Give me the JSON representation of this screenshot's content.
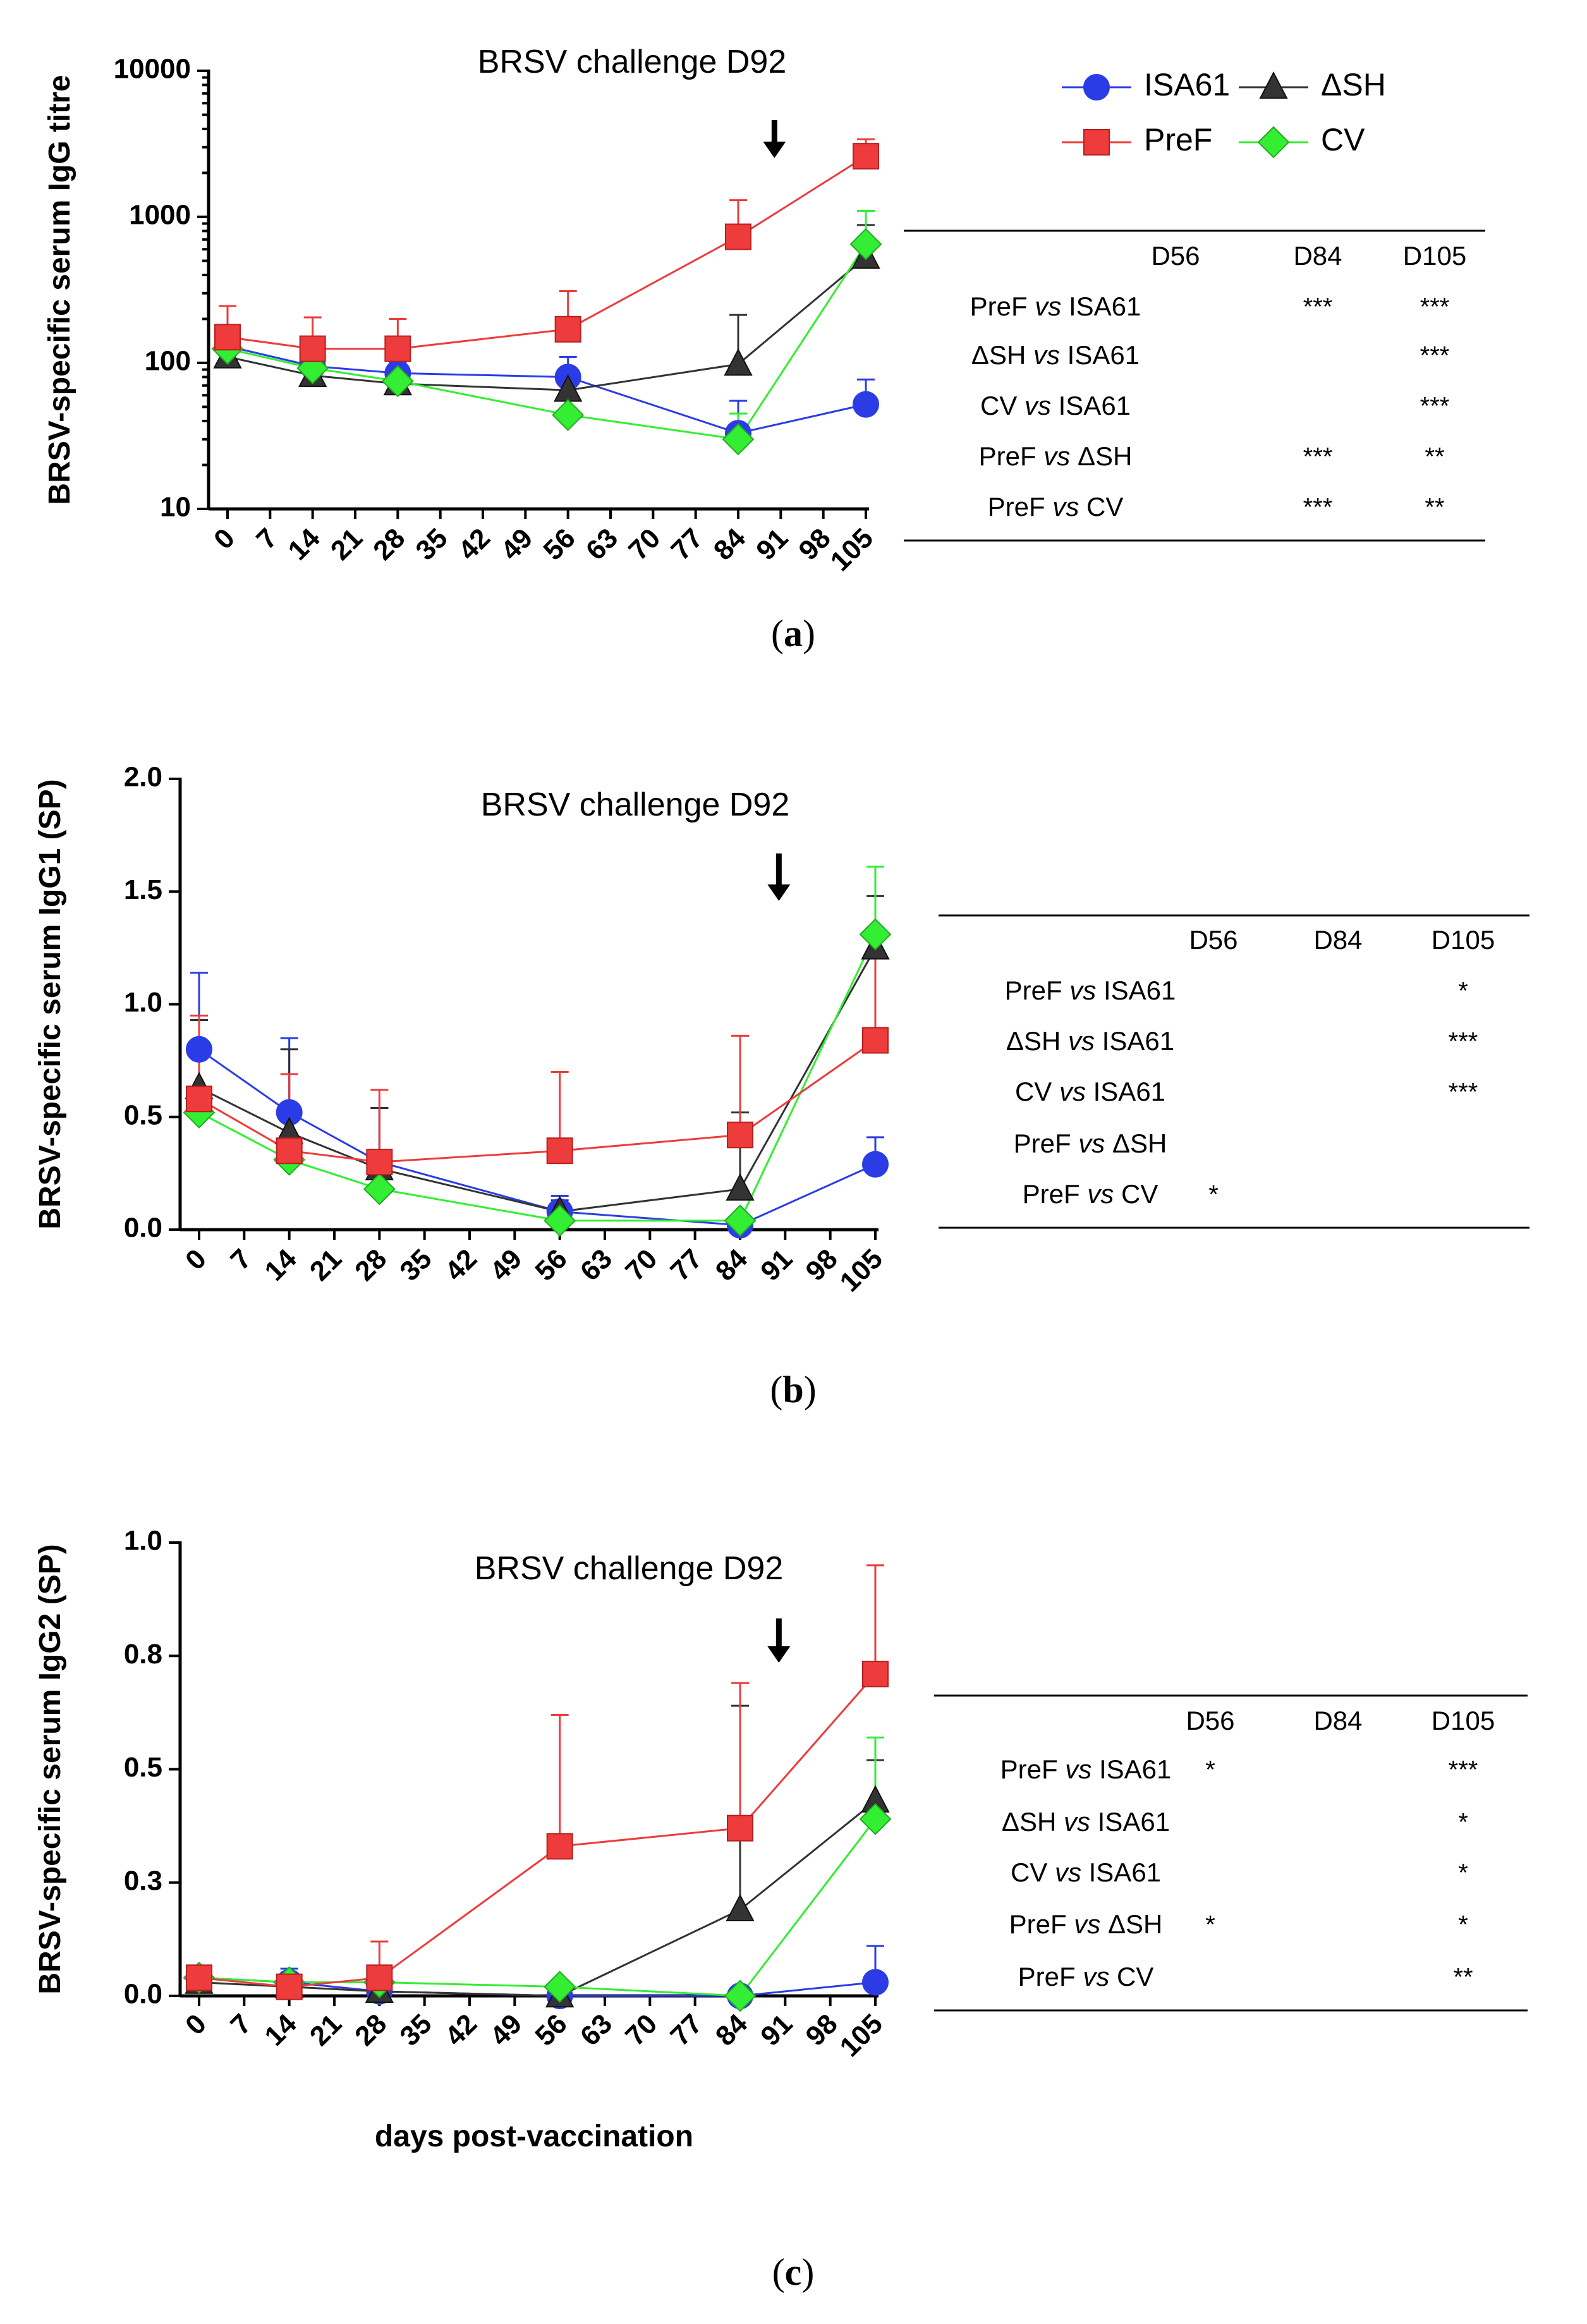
{
  "legend": {
    "items": [
      {
        "name": "ISA61",
        "color": "#2b3ce6",
        "marker": "circle"
      },
      {
        "name": "ΔSH",
        "color": "#333333",
        "marker": "triangle"
      },
      {
        "name": "PreF",
        "color": "#ee3b3b",
        "marker": "square"
      },
      {
        "name": "CV",
        "color": "#33ee33",
        "marker": "diamond"
      }
    ]
  },
  "xlabel": "days post-vaccination",
  "chart_data": [
    {
      "type": "line",
      "panel": "a",
      "scale": "log",
      "ylabel": "BRSV-specific serum IgG titre",
      "ylim": [
        10,
        10000
      ],
      "yticks": [
        10,
        100,
        1000,
        10000
      ],
      "ytick_labels": [
        "10",
        "100",
        "1000",
        "10000"
      ],
      "xticks": [
        0,
        7,
        14,
        21,
        28,
        35,
        42,
        49,
        56,
        63,
        70,
        77,
        84,
        91,
        98,
        105
      ],
      "xlim": [
        0,
        105
      ],
      "annotation": "BRSV challenge D92",
      "arrow_x": 91,
      "series": [
        {
          "name": "ISA61",
          "x": [
            0,
            14,
            28,
            56,
            84,
            105
          ],
          "values": [
            130,
            95,
            85,
            80,
            33,
            52
          ],
          "err": [
            25,
            15,
            15,
            30,
            22,
            25
          ]
        },
        {
          "name": "ΔSH",
          "x": [
            0,
            14,
            28,
            56,
            84,
            105
          ],
          "values": [
            110,
            82,
            72,
            65,
            98,
            530
          ],
          "err": [
            10,
            10,
            8,
            10,
            115,
            350
          ]
        },
        {
          "name": "PreF",
          "x": [
            0,
            14,
            28,
            56,
            84,
            105
          ],
          "values": [
            150,
            125,
            125,
            170,
            730,
            2600
          ],
          "err": [
            95,
            80,
            75,
            140,
            570,
            800
          ]
        },
        {
          "name": "CV",
          "x": [
            0,
            14,
            28,
            56,
            84,
            105
          ],
          "values": [
            125,
            92,
            75,
            44,
            30,
            650
          ],
          "err": [
            10,
            10,
            8,
            5,
            15,
            450
          ]
        }
      ],
      "stats": {
        "columns": [
          "D56",
          "D84",
          "D105"
        ],
        "rows": [
          {
            "label_a": "PreF",
            "vs": "vs",
            "label_b": "ISA61",
            "sig": [
              "",
              "***",
              "***"
            ]
          },
          {
            "label_a": "ΔSH",
            "vs": "vs",
            "label_b": "ISA61",
            "sig": [
              "",
              "",
              "***"
            ]
          },
          {
            "label_a": "CV",
            "vs": "vs",
            "label_b": "ISA61",
            "sig": [
              "",
              "",
              "***"
            ]
          },
          {
            "label_a": "PreF",
            "vs": "vs",
            "label_b": "ΔSH",
            "sig": [
              "",
              "***",
              "**"
            ]
          },
          {
            "label_a": "PreF",
            "vs": "vs",
            "label_b": "CV",
            "sig": [
              "",
              "***",
              "**"
            ]
          }
        ]
      },
      "panel_label": "a"
    },
    {
      "type": "line",
      "panel": "b",
      "scale": "linear",
      "ylabel": "BRSV-specific serum IgG1 (SP)",
      "ylim": [
        0,
        2.0
      ],
      "yticks": [
        0,
        0.5,
        1.0,
        1.5,
        2.0
      ],
      "ytick_labels": [
        "0.0",
        "0.5",
        "1.0",
        "1.5",
        "2.0"
      ],
      "xticks": [
        0,
        7,
        14,
        21,
        28,
        35,
        42,
        49,
        56,
        63,
        70,
        77,
        84,
        91,
        98,
        105
      ],
      "xlim": [
        0,
        105
      ],
      "annotation": "BRSV challenge D92",
      "arrow_x": 91,
      "series": [
        {
          "name": "ISA61",
          "x": [
            0,
            14,
            28,
            56,
            84,
            105
          ],
          "values": [
            0.8,
            0.52,
            0.3,
            0.08,
            0.02,
            0.29
          ],
          "err": [
            0.34,
            0.33,
            0.24,
            0.07,
            0.02,
            0.12
          ]
        },
        {
          "name": "ΔSH",
          "x": [
            0,
            14,
            28,
            56,
            84,
            105
          ],
          "values": [
            0.63,
            0.43,
            0.27,
            0.08,
            0.18,
            1.25
          ],
          "err": [
            0.3,
            0.37,
            0.27,
            0.05,
            0.34,
            0.23
          ]
        },
        {
          "name": "PreF",
          "x": [
            0,
            14,
            28,
            56,
            84,
            105
          ],
          "values": [
            0.58,
            0.35,
            0.3,
            0.35,
            0.42,
            0.84
          ],
          "err": [
            0.37,
            0.34,
            0.32,
            0.35,
            0.44,
            0.5
          ]
        },
        {
          "name": "CV",
          "x": [
            0,
            14,
            28,
            56,
            84,
            105
          ],
          "values": [
            0.52,
            0.31,
            0.18,
            0.04,
            0.04,
            1.31
          ],
          "err": [
            0.05,
            0.05,
            0.03,
            0.02,
            0.02,
            0.3
          ]
        }
      ],
      "stats": {
        "columns": [
          "D56",
          "D84",
          "D105"
        ],
        "rows": [
          {
            "label_a": "PreF",
            "vs": "vs",
            "label_b": "ISA61",
            "sig": [
              "",
              "",
              "*"
            ]
          },
          {
            "label_a": "ΔSH",
            "vs": "vs",
            "label_b": "ISA61",
            "sig": [
              "",
              "",
              "***"
            ]
          },
          {
            "label_a": "CV",
            "vs": "vs",
            "label_b": "ISA61",
            "sig": [
              "",
              "",
              "***"
            ]
          },
          {
            "label_a": "PreF",
            "vs": "vs",
            "label_b": "ΔSH",
            "sig": [
              "",
              "",
              ""
            ]
          },
          {
            "label_a": "PreF",
            "vs": "vs",
            "label_b": "CV",
            "sig": [
              "*",
              "",
              ""
            ]
          }
        ]
      },
      "panel_label": "b"
    },
    {
      "type": "line",
      "panel": "c",
      "scale": "linear",
      "ylabel": "BRSV-specific serum IgG2 (SP)",
      "ylim": [
        0,
        1.0
      ],
      "yticks": [
        0,
        0.25,
        0.5,
        0.75,
        1.0
      ],
      "ytick_labels": [
        "0.0",
        "0.3",
        "0.5",
        "0.8",
        "1.0"
      ],
      "xticks": [
        0,
        7,
        14,
        21,
        28,
        35,
        42,
        49,
        56,
        63,
        70,
        77,
        84,
        91,
        98,
        105
      ],
      "xlim": [
        0,
        105
      ],
      "annotation": "BRSV challenge D92",
      "arrow_x": 91,
      "series": [
        {
          "name": "ISA61",
          "x": [
            0,
            14,
            28,
            56,
            84,
            105
          ],
          "values": [
            0.04,
            0.03,
            0.01,
            0.0,
            0.0,
            0.03
          ],
          "err": [
            0.02,
            0.03,
            0.01,
            0.0,
            0.0,
            0.08
          ]
        },
        {
          "name": "ΔSH",
          "x": [
            0,
            14,
            28,
            56,
            84,
            105
          ],
          "values": [
            0.03,
            0.02,
            0.01,
            0.0,
            0.19,
            0.43
          ],
          "err": [
            0.01,
            0.02,
            0.01,
            0.0,
            0.45,
            0.09
          ]
        },
        {
          "name": "PreF",
          "x": [
            0,
            14,
            28,
            56,
            84,
            105
          ],
          "values": [
            0.04,
            0.02,
            0.04,
            0.33,
            0.37,
            0.71
          ],
          "err": [
            0.02,
            0.03,
            0.08,
            0.29,
            0.32,
            0.24
          ]
        },
        {
          "name": "CV",
          "x": [
            0,
            14,
            28,
            56,
            84,
            105
          ],
          "values": [
            0.04,
            0.03,
            0.03,
            0.02,
            0.0,
            0.39
          ],
          "err": [
            0.01,
            0.01,
            0.01,
            0.01,
            0.0,
            0.18
          ]
        }
      ],
      "stats": {
        "columns": [
          "D56",
          "D84",
          "D105"
        ],
        "rows": [
          {
            "label_a": "PreF",
            "vs": "vs",
            "label_b": "ISA61",
            "sig": [
              "*",
              "",
              "***"
            ]
          },
          {
            "label_a": "ΔSH",
            "vs": "vs",
            "label_b": "ISA61",
            "sig": [
              "",
              "",
              "*"
            ]
          },
          {
            "label_a": "CV",
            "vs": "vs",
            "label_b": "ISA61",
            "sig": [
              "",
              "",
              "*"
            ]
          },
          {
            "label_a": "PreF",
            "vs": "vs",
            "label_b": "ΔSH",
            "sig": [
              "*",
              "",
              "*"
            ]
          },
          {
            "label_a": "PreF",
            "vs": "vs",
            "label_b": "CV",
            "sig": [
              "",
              "",
              "**"
            ]
          }
        ]
      },
      "panel_label": "c"
    }
  ]
}
